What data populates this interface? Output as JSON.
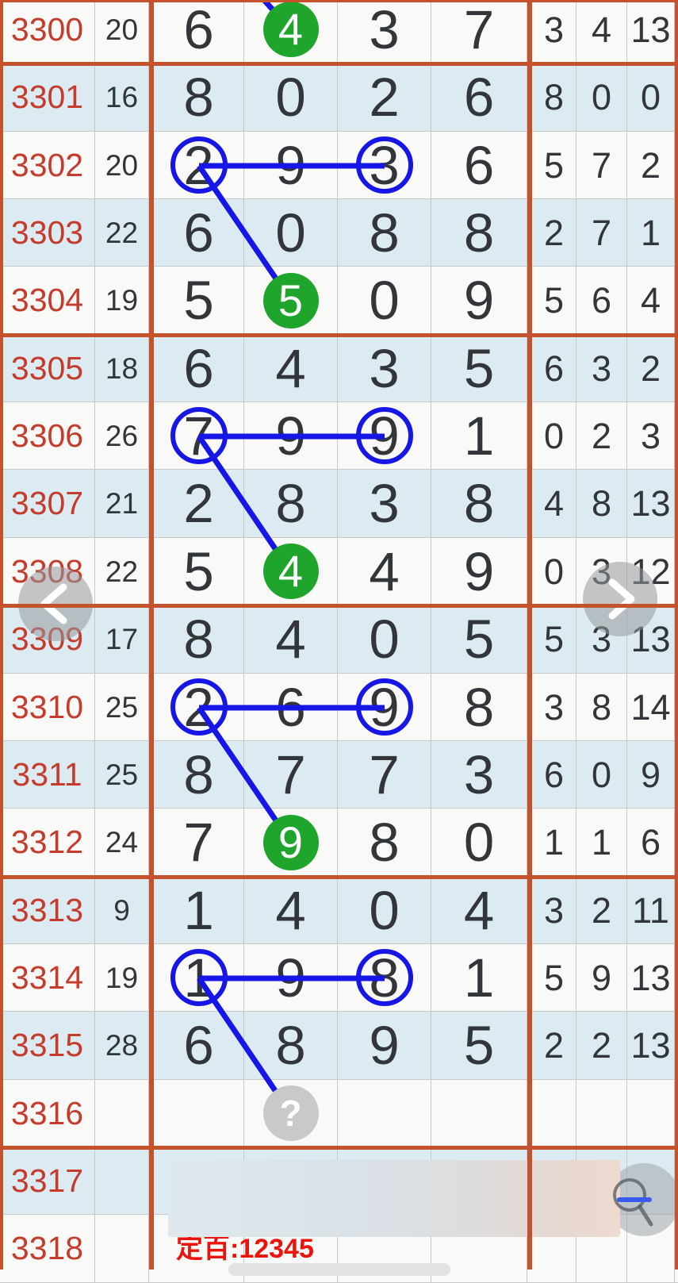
{
  "chart": {
    "title": "lottery-trend-table",
    "question_mark": "?",
    "rows": [
      {
        "period": "3300",
        "sum": "20",
        "big": [
          "6",
          "4",
          "3",
          "7"
        ],
        "small": [
          "3",
          "4",
          "13"
        ],
        "marks": {
          "green": 1,
          "top_line": true
        }
      },
      {
        "period": "3301",
        "sum": "16",
        "big": [
          "8",
          "0",
          "2",
          "6"
        ],
        "small": [
          "8",
          "0",
          "0"
        ],
        "marks": {}
      },
      {
        "period": "3302",
        "sum": "20",
        "big": [
          "2",
          "9",
          "3",
          "6"
        ],
        "small": [
          "5",
          "7",
          "2"
        ],
        "marks": {
          "rings": [
            0,
            2
          ],
          "link": {
            "to_period": "3304",
            "to_col": 1
          }
        }
      },
      {
        "period": "3303",
        "sum": "22",
        "big": [
          "6",
          "0",
          "8",
          "8"
        ],
        "small": [
          "2",
          "7",
          "1"
        ],
        "marks": {}
      },
      {
        "period": "3304",
        "sum": "19",
        "big": [
          "5",
          "5",
          "0",
          "9"
        ],
        "small": [
          "5",
          "6",
          "4"
        ],
        "marks": {
          "green": 1
        }
      },
      {
        "period": "3305",
        "sum": "18",
        "big": [
          "6",
          "4",
          "3",
          "5"
        ],
        "small": [
          "6",
          "3",
          "2"
        ],
        "marks": {}
      },
      {
        "period": "3306",
        "sum": "26",
        "big": [
          "7",
          "9",
          "9",
          "1"
        ],
        "small": [
          "0",
          "2",
          "3"
        ],
        "marks": {
          "rings": [
            0,
            2
          ],
          "link": {
            "to_period": "3308",
            "to_col": 1
          }
        }
      },
      {
        "period": "3307",
        "sum": "21",
        "big": [
          "2",
          "8",
          "3",
          "8"
        ],
        "small": [
          "4",
          "8",
          "13"
        ],
        "marks": {}
      },
      {
        "period": "3308",
        "sum": "22",
        "big": [
          "5",
          "4",
          "4",
          "9"
        ],
        "small": [
          "0",
          "3",
          "12"
        ],
        "marks": {
          "green": 1
        }
      },
      {
        "period": "3309",
        "sum": "17",
        "big": [
          "8",
          "4",
          "0",
          "5"
        ],
        "small": [
          "5",
          "3",
          "13"
        ],
        "marks": {}
      },
      {
        "period": "3310",
        "sum": "25",
        "big": [
          "2",
          "6",
          "9",
          "8"
        ],
        "small": [
          "3",
          "8",
          "14"
        ],
        "marks": {
          "rings": [
            0,
            2
          ],
          "link": {
            "to_period": "3312",
            "to_col": 1
          }
        }
      },
      {
        "period": "3311",
        "sum": "25",
        "big": [
          "8",
          "7",
          "7",
          "3"
        ],
        "small": [
          "6",
          "0",
          "9"
        ],
        "marks": {}
      },
      {
        "period": "3312",
        "sum": "24",
        "big": [
          "7",
          "9",
          "8",
          "0"
        ],
        "small": [
          "1",
          "1",
          "6"
        ],
        "marks": {
          "green": 1
        }
      },
      {
        "period": "3313",
        "sum": "9",
        "big": [
          "1",
          "4",
          "0",
          "4"
        ],
        "small": [
          "3",
          "2",
          "11"
        ],
        "marks": {}
      },
      {
        "period": "3314",
        "sum": "19",
        "big": [
          "1",
          "9",
          "8",
          "1"
        ],
        "small": [
          "5",
          "9",
          "13"
        ],
        "marks": {
          "rings": [
            0,
            2
          ],
          "link": {
            "to_period": "3316",
            "to_col": 1
          }
        }
      },
      {
        "period": "3315",
        "sum": "28",
        "big": [
          "6",
          "8",
          "9",
          "5"
        ],
        "small": [
          "2",
          "2",
          "13"
        ],
        "marks": {}
      },
      {
        "period": "3316",
        "sum": "",
        "big": [
          "",
          "",
          "",
          ""
        ],
        "small": [
          "",
          "",
          ""
        ],
        "marks": {
          "question": 1
        }
      },
      {
        "period": "3317",
        "sum": "",
        "big": [
          "",
          "",
          "",
          ""
        ],
        "small": [
          "",
          "",
          ""
        ],
        "marks": {}
      },
      {
        "period": "3318",
        "sum": "",
        "big": [
          "",
          "",
          "",
          ""
        ],
        "small": [
          "",
          "",
          ""
        ],
        "marks": {}
      }
    ]
  },
  "footer": {
    "label": "定百:12345"
  },
  "icons": {
    "left_nav": "chevron-left",
    "right_nav": "chevron-right",
    "zoom_button": "magnifier-minus"
  },
  "colors": {
    "group_border": "#c4522c",
    "period_text": "#c53b2c",
    "hit_disc": "#1fa42c",
    "trend_blue": "#1616e6",
    "footer_red": "#eb140d",
    "row_alt_bg": "#dcebf2",
    "row_bg": "#f9f9f8"
  }
}
